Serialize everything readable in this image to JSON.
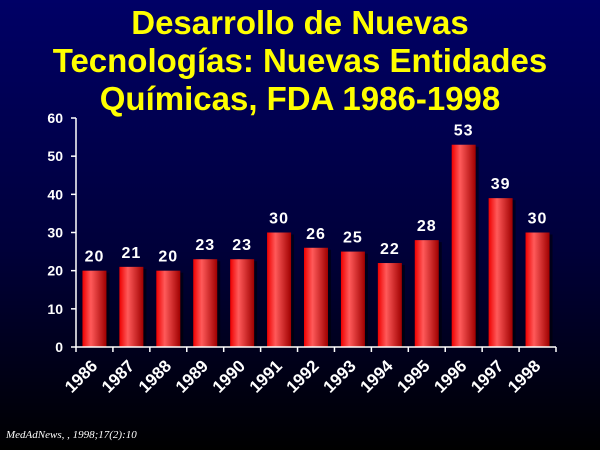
{
  "chart_data": {
    "type": "bar",
    "title_lines": [
      "Desarrollo de Nuevas",
      "Tecnologías: Nuevas Entidades",
      "Químicas, FDA 1986-1998"
    ],
    "categories": [
      "1986",
      "1987",
      "1988",
      "1989",
      "1990",
      "1991",
      "1992",
      "1993",
      "1994",
      "1995",
      "1996",
      "1997",
      "1998"
    ],
    "values": [
      20,
      21,
      20,
      23,
      23,
      30,
      26,
      25,
      22,
      28,
      53,
      39,
      30
    ],
    "yticks": [
      0,
      10,
      20,
      30,
      40,
      50,
      60
    ],
    "ylim": [
      0,
      60
    ],
    "xlabel": "",
    "ylabel": "",
    "grid": false,
    "legend": "none",
    "colors": {
      "bar": "#ee0000",
      "bar_highlight": "#ff5a5a",
      "bar_shadow": "#a00000",
      "title": "#ffff00",
      "text": "#ffffff",
      "axis": "#ffffff"
    }
  },
  "source": "MedAdNews, , 1998;17(2):10"
}
